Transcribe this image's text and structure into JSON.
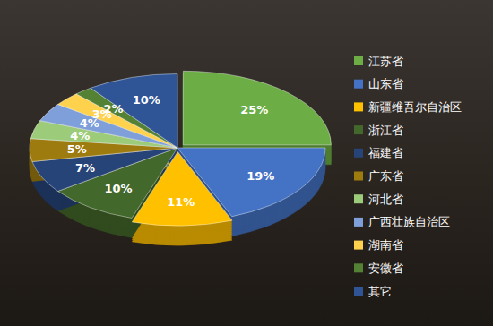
{
  "chart_data": {
    "type": "pie",
    "categories": [
      "江苏省",
      "山东省",
      "新疆维吾尔自治区",
      "浙江省",
      "福建省",
      "广东省",
      "河北省",
      "广西壮族自治区",
      "湖南省",
      "安徽省",
      "其它"
    ],
    "values": [
      25,
      19,
      11,
      10,
      7,
      5,
      4,
      4,
      3,
      2,
      10
    ],
    "value_labels": [
      "25%",
      "19%",
      "11%",
      "10%",
      "7%",
      "5%",
      "4%",
      "4%",
      "3%",
      "2%",
      "10%"
    ],
    "colors": [
      "#6cae45",
      "#4472c4",
      "#ffc000",
      "#43682b",
      "#264478",
      "#9e7b0f",
      "#9ccb7a",
      "#7e9fd9",
      "#ffd24d",
      "#548235",
      "#2f5597"
    ],
    "data_labels": true,
    "legend": "right"
  }
}
